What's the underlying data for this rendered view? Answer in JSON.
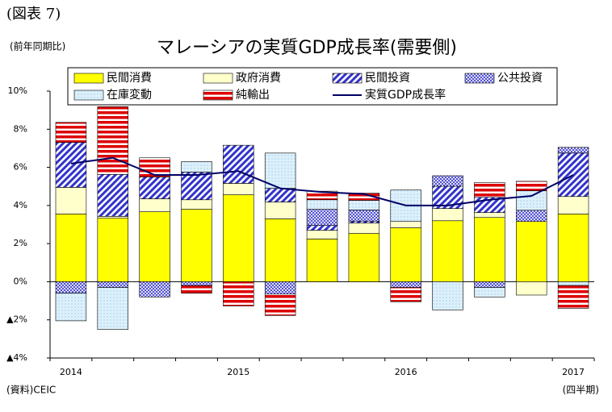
{
  "chart_data": {
    "type": "bar",
    "figure_label": "(図表 7)",
    "y_axis_label": "(前年同期比)",
    "title": "マレーシアの実質GDP成長率(需要側)",
    "source": "(資料)CEIC",
    "x_axis_label": "(四半期)",
    "categories": [
      "2014",
      null,
      null,
      null,
      "2015",
      null,
      null,
      null,
      "2016",
      null,
      null,
      null,
      "2017"
    ],
    "stacked": true,
    "series": [
      {
        "name": "民間消費",
        "color": "#ffff00",
        "pattern": "solid",
        "values": [
          3.55,
          3.33,
          3.67,
          3.8,
          4.56,
          3.3,
          2.24,
          2.53,
          2.83,
          3.2,
          3.37,
          3.16,
          3.55
        ]
      },
      {
        "name": "政府消費",
        "color": "#ffffcc",
        "pattern": "solid",
        "values": [
          1.4,
          0.1,
          0.68,
          0.5,
          0.6,
          0.88,
          0.46,
          0.55,
          0.33,
          0.64,
          0.26,
          -0.7,
          0.92
        ]
      },
      {
        "name": "民間投資",
        "color": "#3333cc",
        "pattern": "diagonal-stripes",
        "values": [
          2.36,
          2.2,
          1.15,
          1.45,
          2.0,
          0.72,
          0.25,
          0.1,
          0,
          1.17,
          0.8,
          0,
          2.28
        ]
      },
      {
        "name": "公共投資",
        "color": "#3333cc",
        "pattern": "crosshatch",
        "values": [
          -0.6,
          -0.3,
          -0.8,
          -0.2,
          0,
          -0.65,
          0.85,
          0.59,
          -0.3,
          0.55,
          -0.3,
          0.59,
          0.3
        ]
      },
      {
        "name": "在庫変動",
        "color": "#99ccee",
        "pattern": "dots",
        "values": [
          -1.45,
          -2.2,
          0,
          0.55,
          0,
          1.85,
          0.5,
          0.5,
          1.65,
          -1.48,
          -0.5,
          1.02,
          -0.2
        ]
      },
      {
        "name": "純輸出",
        "color": "#dd0000",
        "pattern": "horizontal-stripes",
        "values": [
          1.05,
          3.55,
          1.0,
          -0.4,
          -1.27,
          -1.12,
          0.45,
          0.38,
          -0.75,
          0,
          0.77,
          0.5,
          -1.2
        ]
      }
    ],
    "line": {
      "name": "実質GDP成長率",
      "color": "#000066",
      "values": [
        6.2,
        6.5,
        5.6,
        5.6,
        5.8,
        4.9,
        4.7,
        4.6,
        4.0,
        4.0,
        4.3,
        4.5,
        5.6
      ]
    },
    "ylim": [
      -4,
      10
    ],
    "yticks": [
      {
        "value": -4,
        "label": "▲4%"
      },
      {
        "value": -2,
        "label": "▲2%"
      },
      {
        "value": 0,
        "label": "0%"
      },
      {
        "value": 2,
        "label": "2%"
      },
      {
        "value": 4,
        "label": "4%"
      },
      {
        "value": 6,
        "label": "6%"
      },
      {
        "value": 8,
        "label": "8%"
      },
      {
        "value": 10,
        "label": "10%"
      }
    ],
    "grid": false
  }
}
